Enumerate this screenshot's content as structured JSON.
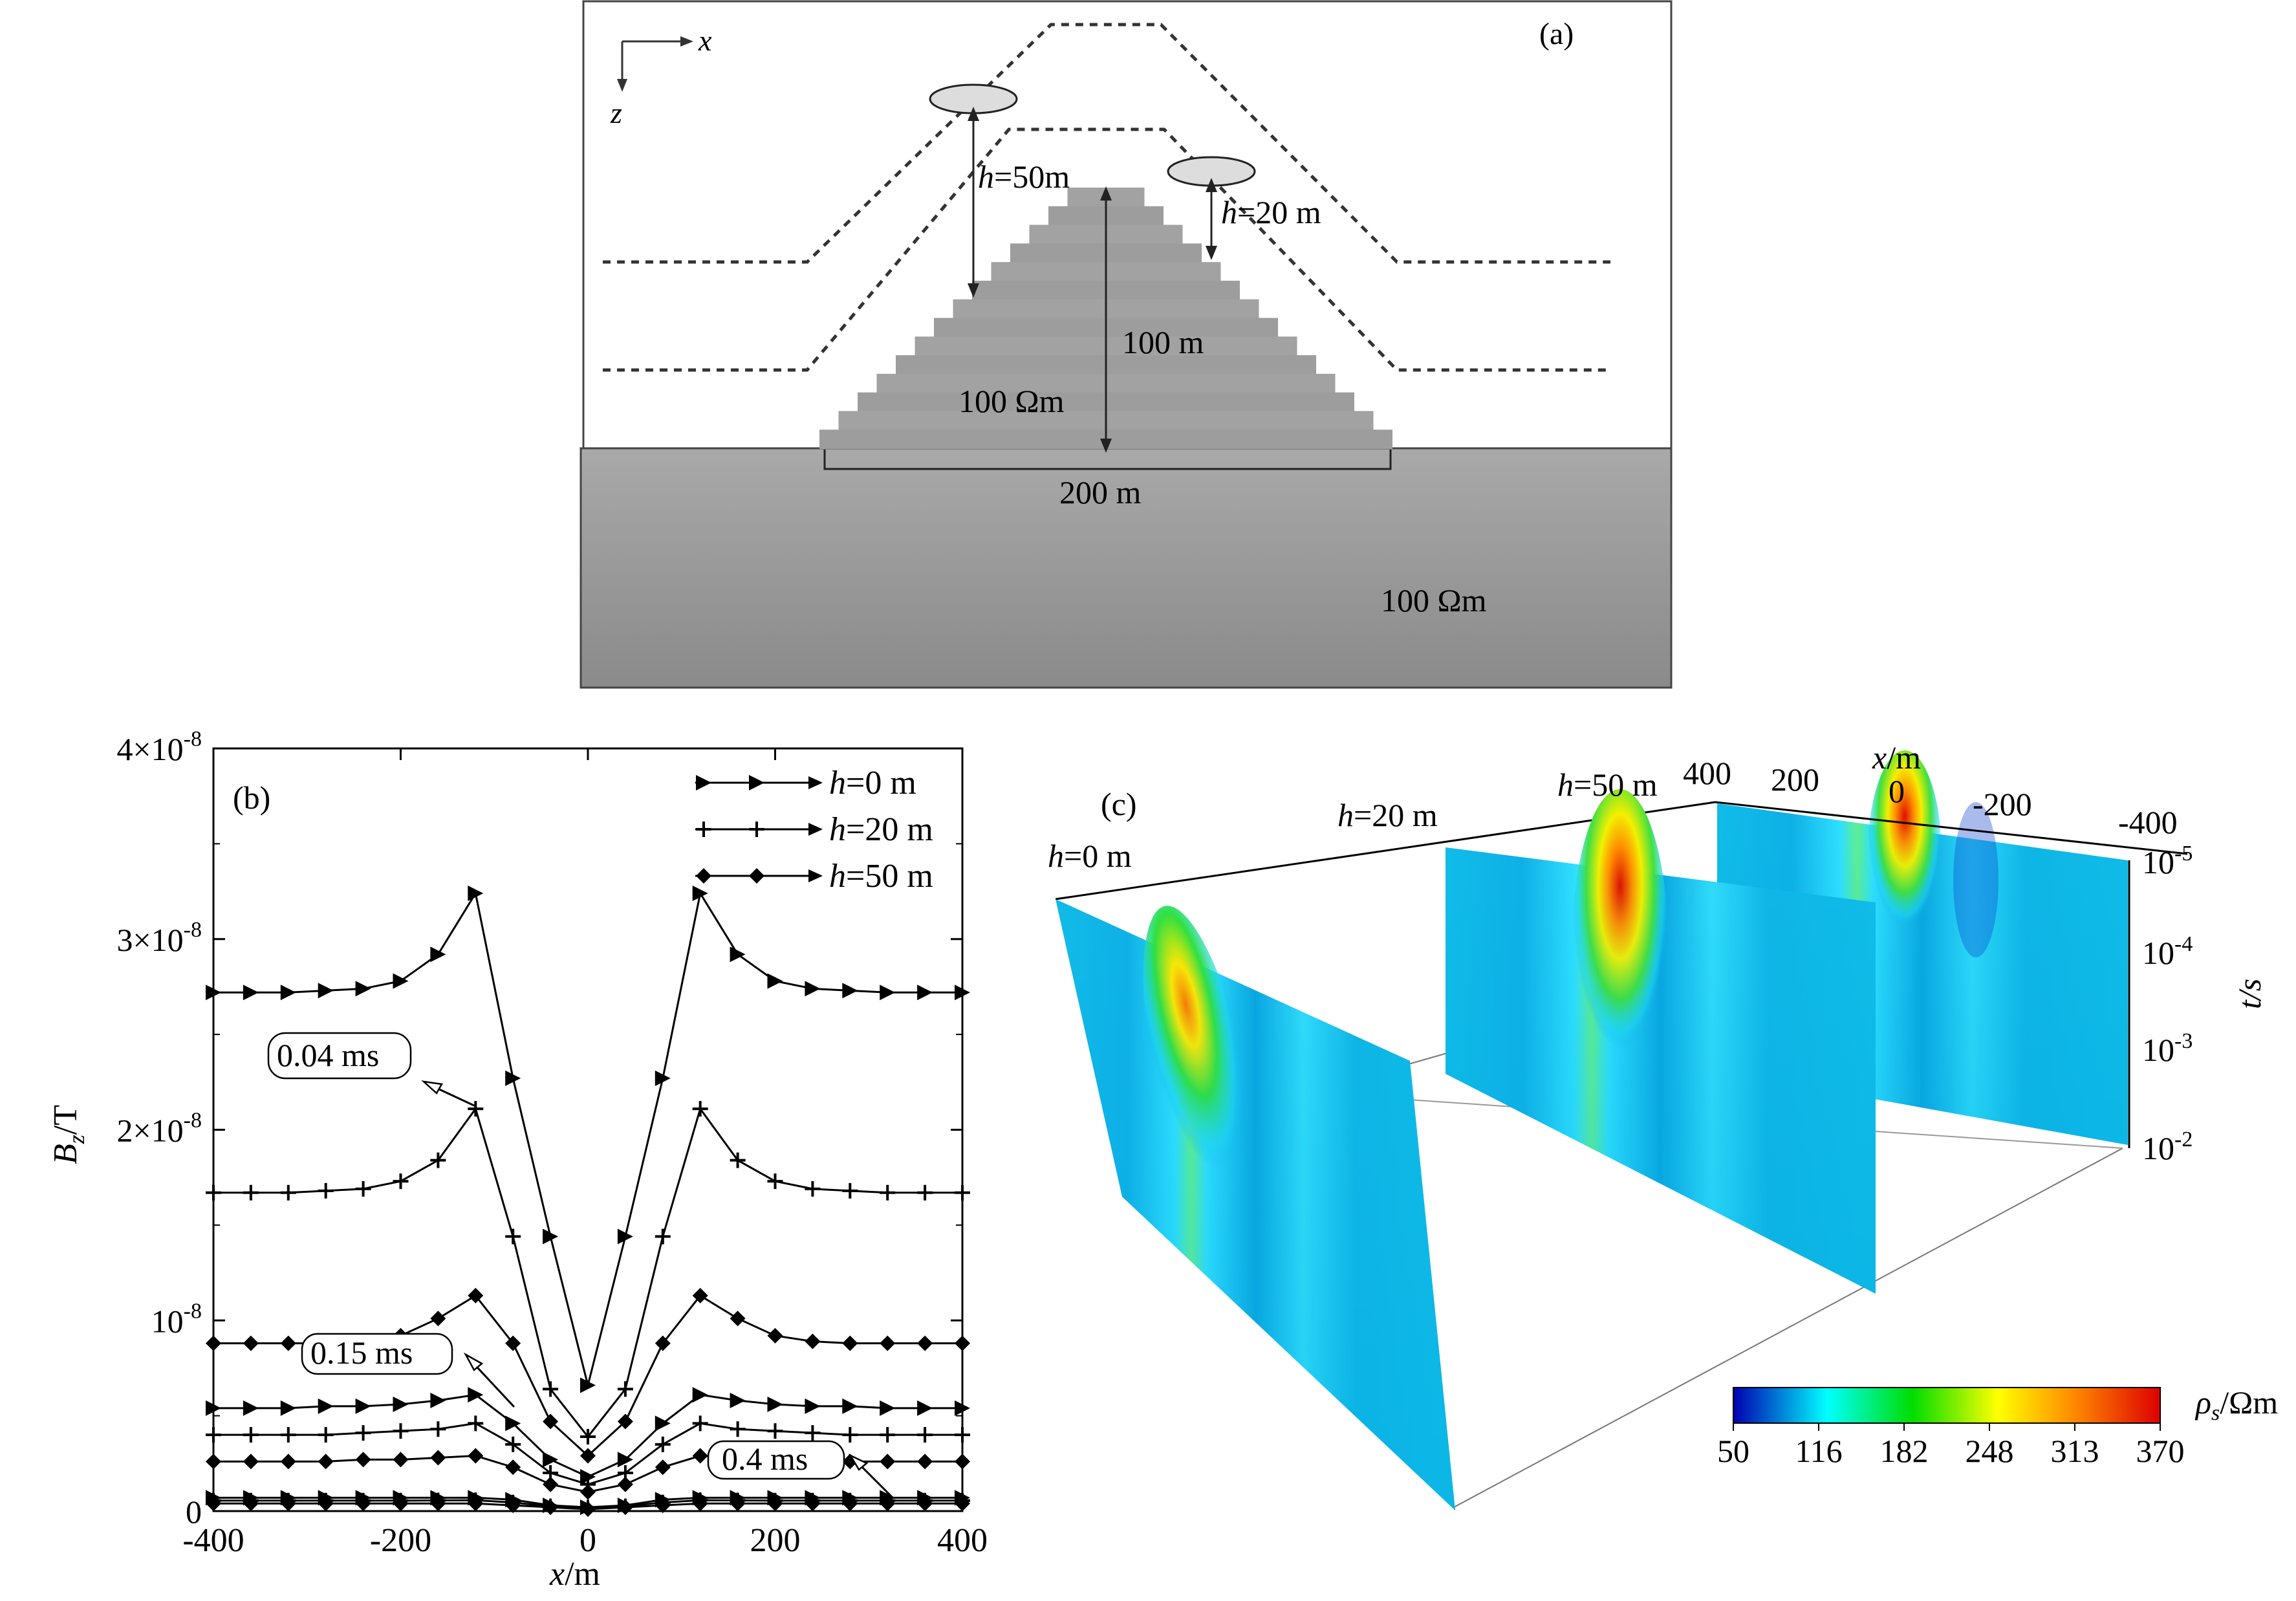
{
  "panel_a": {
    "label": "(a)",
    "axis_x": "x",
    "axis_z": "z",
    "h50_label": "=50m",
    "h20_label": "=20 m",
    "height_label": "100 m",
    "hill_resistivity": "100 Ωm",
    "width_label": "200 m",
    "ground_resistivity": "100 Ωm"
  },
  "panel_b": {
    "label": "(b)",
    "ylabel_main": "B",
    "ylabel_sub": "z",
    "ylabel_unit": "/T",
    "xlabel": "x",
    "xlabel_unit": "/m",
    "annotations": [
      "0.04 ms",
      "0.15 ms",
      "0.4 ms"
    ]
  },
  "panel_c": {
    "label": "(c)",
    "slice_labels": [
      "=0 m",
      "=20 m",
      "=50 m"
    ],
    "x_axis_label": "x/m",
    "x_ticks": [
      "400",
      "200",
      "0",
      "-200",
      "-400"
    ],
    "t_axis_label": "t/s",
    "t_ticks": [
      {
        "base": "10",
        "exp": "-5"
      },
      {
        "base": "10",
        "exp": "-4"
      },
      {
        "base": "10",
        "exp": "-3"
      },
      {
        "base": "10",
        "exp": "-2"
      }
    ],
    "colorbar_label": "ρ",
    "colorbar_label_sub": "s",
    "colorbar_label_unit": "/Ωm",
    "colorbar_ticks": [
      "50",
      "116",
      "182",
      "248",
      "313",
      "370"
    ],
    "colorbar_colors": [
      "#0000b0",
      "#00ffff",
      "#00dd00",
      "#ffff00",
      "#ff8800",
      "#dd0000"
    ]
  },
  "chart_data": {
    "type": "line",
    "xlim": [
      -400,
      400
    ],
    "ylim": [
      0,
      4e-08
    ],
    "xlabel": "x/m",
    "ylabel": "Bz/T",
    "x_ticks": [
      -400,
      -200,
      0,
      200,
      400
    ],
    "y_ticks": [
      {
        "value": 4e-08,
        "mant": "4×10",
        "exp": "-8"
      },
      {
        "value": 3e-08,
        "mant": "3×10",
        "exp": "-8"
      },
      {
        "value": 2e-08,
        "mant": "2×10",
        "exp": "-8"
      },
      {
        "value": 1e-08,
        "mant": "10",
        "exp": "-8"
      },
      {
        "value": 0,
        "mant": "0",
        "exp": ""
      }
    ],
    "x": [
      -400,
      -360,
      -320,
      -280,
      -240,
      -200,
      -160,
      -120,
      -80,
      -40,
      0,
      40,
      80,
      120,
      160,
      200,
      240,
      280,
      320,
      360,
      400
    ],
    "legend_position": "top-right",
    "series": [
      {
        "name": "h=0 m",
        "legend_h": "h",
        "legend_rest": "=0 m",
        "marker": "triangle",
        "time": "0.04 ms",
        "values": [
          2.72e-08,
          2.72e-08,
          2.72e-08,
          2.73e-08,
          2.74e-08,
          2.78e-08,
          2.92e-08,
          3.24e-08,
          2.27e-08,
          1.44e-08,
          6.6e-09,
          1.44e-08,
          2.27e-08,
          3.24e-08,
          2.92e-08,
          2.78e-08,
          2.74e-08,
          2.73e-08,
          2.72e-08,
          2.72e-08,
          2.72e-08
        ]
      },
      {
        "name": "h=20 m",
        "legend_h": "h",
        "legend_rest": "=20 m",
        "marker": "plus",
        "time": "0.04 ms",
        "values": [
          1.67e-08,
          1.67e-08,
          1.67e-08,
          1.68e-08,
          1.69e-08,
          1.73e-08,
          1.84e-08,
          2.11e-08,
          1.44e-08,
          6.4e-09,
          3.9e-09,
          6.4e-09,
          1.44e-08,
          2.11e-08,
          1.84e-08,
          1.73e-08,
          1.69e-08,
          1.68e-08,
          1.67e-08,
          1.67e-08,
          1.67e-08
        ]
      },
      {
        "name": "h=50 m",
        "legend_h": "h",
        "legend_rest": "=50 m",
        "marker": "diamond",
        "time": "0.04 ms",
        "values": [
          8.8e-09,
          8.8e-09,
          8.8e-09,
          8.8e-09,
          8.9e-09,
          9.2e-09,
          1.01e-08,
          1.13e-08,
          8.8e-09,
          4.7e-09,
          2.9e-09,
          4.7e-09,
          8.8e-09,
          1.13e-08,
          1.01e-08,
          9.2e-09,
          8.9e-09,
          8.8e-09,
          8.8e-09,
          8.8e-09,
          8.8e-09
        ]
      },
      {
        "name": "h=0 m",
        "marker": "triangle",
        "time": "0.15 ms",
        "values": [
          5.4e-09,
          5.4e-09,
          5.4e-09,
          5.5e-09,
          5.5e-09,
          5.6e-09,
          5.8e-09,
          6.1e-09,
          4.6e-09,
          2.7e-09,
          1.8e-09,
          2.7e-09,
          4.6e-09,
          6.1e-09,
          5.8e-09,
          5.6e-09,
          5.5e-09,
          5.5e-09,
          5.4e-09,
          5.4e-09,
          5.4e-09
        ]
      },
      {
        "name": "h=20 m",
        "marker": "plus",
        "time": "0.15 ms",
        "values": [
          4e-09,
          4e-09,
          4e-09,
          4e-09,
          4.1e-09,
          4.2e-09,
          4.3e-09,
          4.6e-09,
          3.5e-09,
          2e-09,
          1.4e-09,
          2e-09,
          3.5e-09,
          4.6e-09,
          4.3e-09,
          4.2e-09,
          4.1e-09,
          4e-09,
          4e-09,
          4e-09,
          4e-09
        ]
      },
      {
        "name": "h=50 m",
        "marker": "diamond",
        "time": "0.15 ms",
        "values": [
          2.6e-09,
          2.6e-09,
          2.6e-09,
          2.6e-09,
          2.7e-09,
          2.7e-09,
          2.8e-09,
          2.9e-09,
          2.3e-09,
          1.4e-09,
          1e-09,
          1.4e-09,
          2.3e-09,
          2.9e-09,
          2.8e-09,
          2.7e-09,
          2.7e-09,
          2.6e-09,
          2.6e-09,
          2.6e-09,
          2.6e-09
        ]
      },
      {
        "name": "h=0 m",
        "marker": "triangle",
        "time": "0.4 ms",
        "values": [
          7e-10,
          7e-10,
          7e-10,
          7e-10,
          7e-10,
          7e-10,
          7e-10,
          7e-10,
          6e-10,
          3e-10,
          2e-10,
          3e-10,
          6e-10,
          7e-10,
          7e-10,
          7e-10,
          7e-10,
          7e-10,
          7e-10,
          7e-10,
          7e-10
        ]
      },
      {
        "name": "h=20 m",
        "marker": "plus",
        "time": "0.4 ms",
        "values": [
          5.5e-10,
          5.5e-10,
          5.5e-10,
          5.5e-10,
          5.5e-10,
          5.5e-10,
          5.6e-10,
          5.7e-10,
          4.5e-10,
          2.5e-10,
          1.5e-10,
          2.5e-10,
          4.5e-10,
          5.7e-10,
          5.6e-10,
          5.5e-10,
          5.5e-10,
          5.5e-10,
          5.5e-10,
          5.5e-10,
          5.5e-10
        ]
      },
      {
        "name": "h=50 m",
        "marker": "diamond",
        "time": "0.4 ms",
        "values": [
          4e-10,
          4e-10,
          4e-10,
          4e-10,
          4e-10,
          4e-10,
          4e-10,
          4e-10,
          3e-10,
          2e-10,
          1e-10,
          2e-10,
          3e-10,
          4e-10,
          4e-10,
          4e-10,
          4e-10,
          4e-10,
          4e-10,
          4e-10,
          4e-10
        ]
      }
    ]
  }
}
